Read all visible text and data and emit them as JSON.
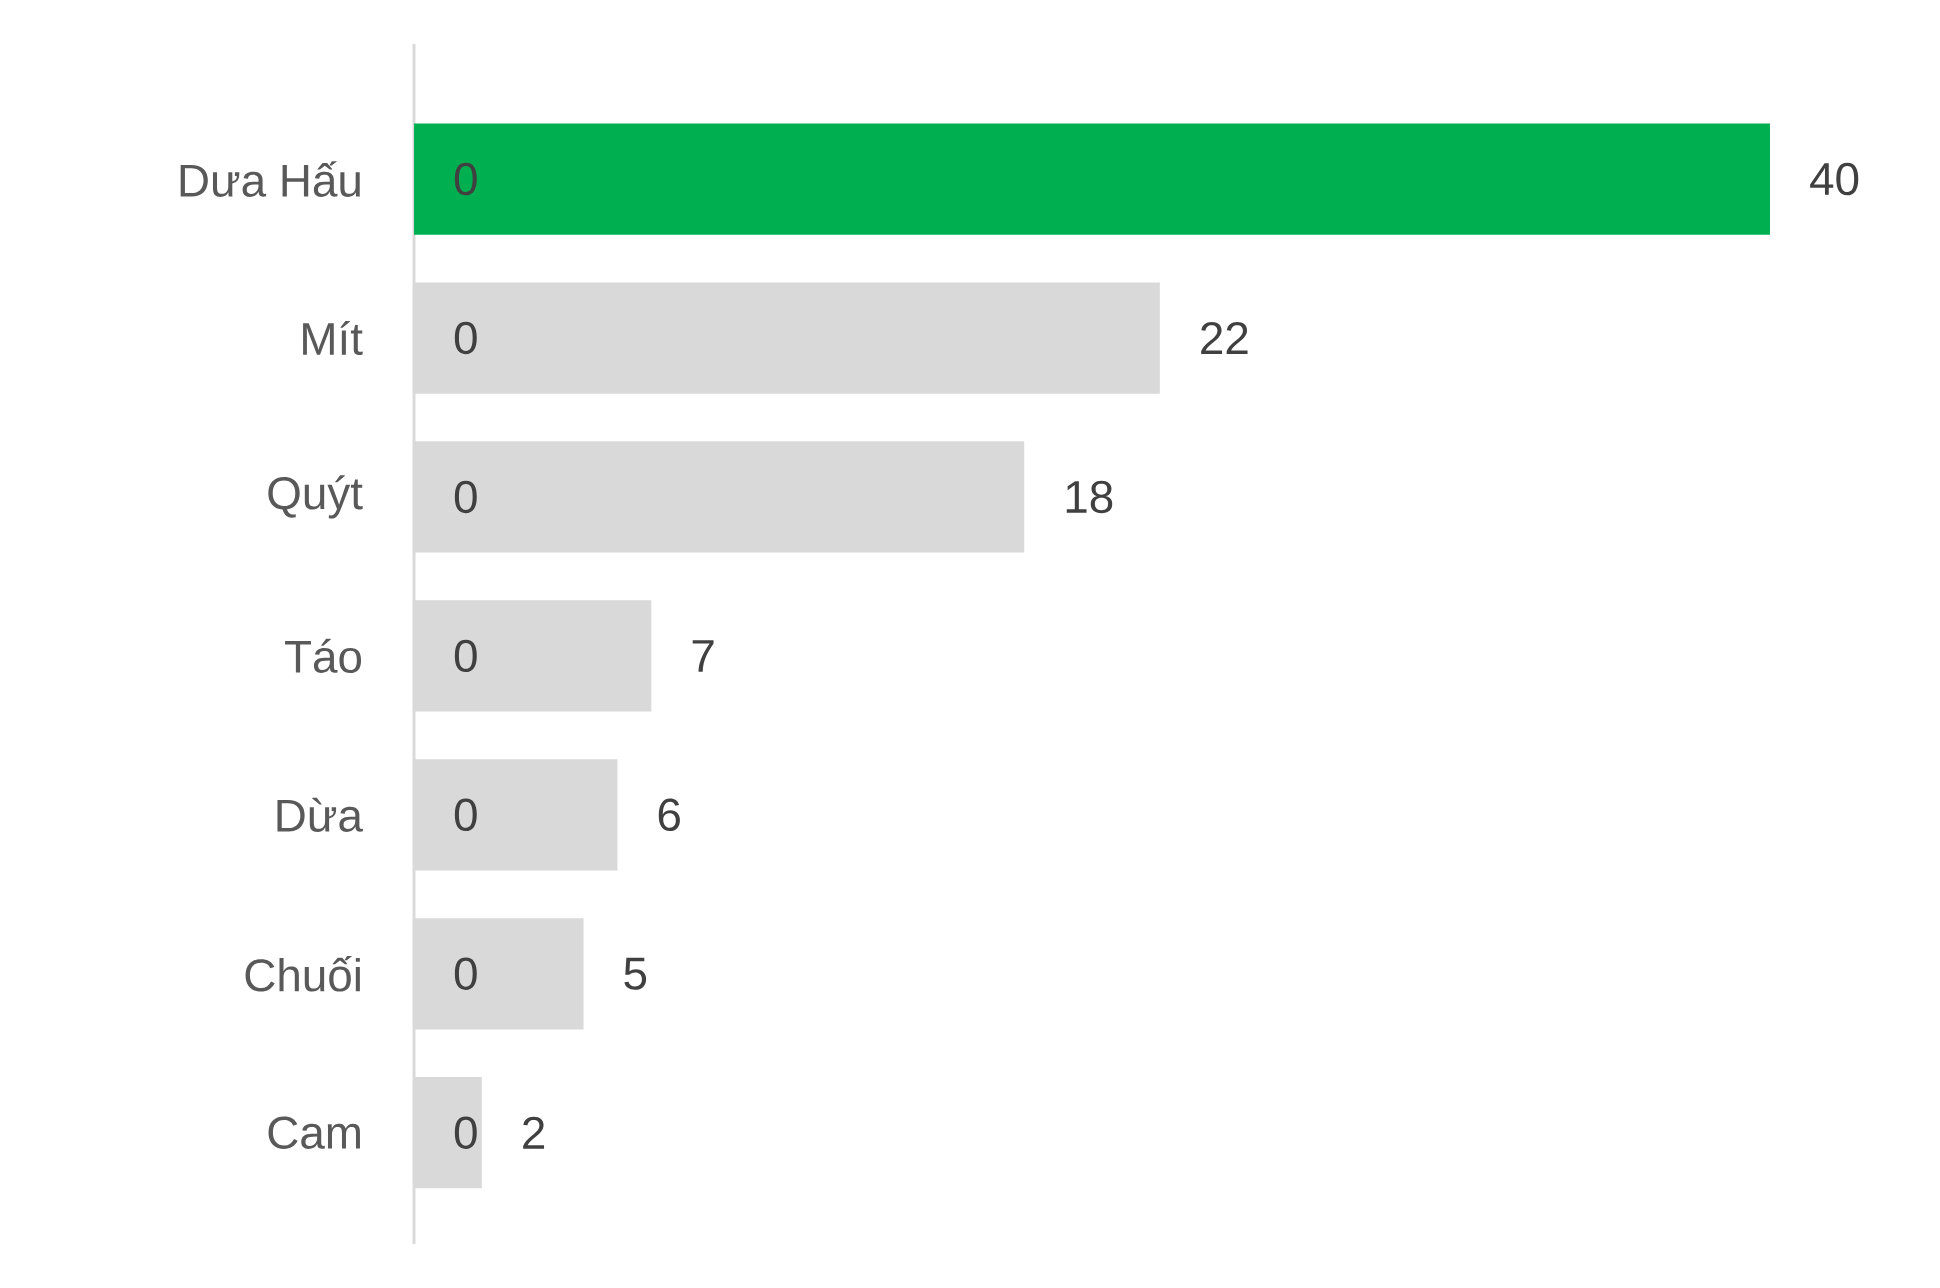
{
  "chart_data": {
    "type": "bar",
    "orientation": "horizontal",
    "data_labels": true,
    "categories": [
      "Dưa Hấu",
      "Mít",
      "Quýt",
      "Táo",
      "Dừa",
      "Chuối",
      "Cam"
    ],
    "xlim": [
      0,
      40
    ],
    "series": [
      {
        "values": [
          0,
          0,
          0,
          0,
          0,
          0,
          0
        ]
      },
      {
        "colors": [
          "#00b050",
          "#d9d9d9",
          "#d9d9d9",
          "#d9d9d9",
          "#d9d9d9",
          "#d9d9d9",
          "#d9d9d9"
        ],
        "values": [
          40,
          22,
          18,
          7,
          6,
          5,
          2
        ]
      }
    ]
  }
}
